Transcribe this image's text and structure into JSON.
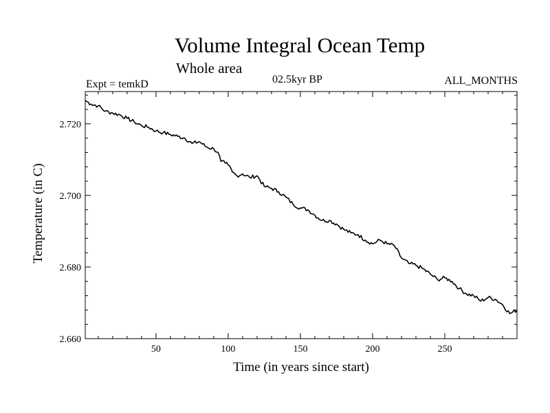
{
  "chart_data": {
    "type": "line",
    "title": "Volume Integral Ocean Temp",
    "subtitle": "Whole area",
    "left_annotation": "Expt = temkD",
    "center_annotation": "02.5kyr BP",
    "right_annotation": "ALL_MONTHS",
    "xlabel": "Time (in years since start)",
    "ylabel": "Temperature (in C)",
    "xlim": [
      1,
      300
    ],
    "ylim": [
      2.66,
      2.729
    ],
    "xticks": [
      50,
      100,
      150,
      200,
      250
    ],
    "yticks": [
      2.66,
      2.68,
      2.7,
      2.72
    ],
    "xtick_labels": [
      "50",
      "100",
      "150",
      "200",
      "250"
    ],
    "ytick_labels": [
      "2.660",
      "2.680",
      "2.700",
      "2.720"
    ],
    "grid": false,
    "series": [
      {
        "name": "Volume Integral Ocean Temp",
        "color": "#000000",
        "x": [
          1,
          5,
          10,
          15,
          20,
          25,
          30,
          35,
          40,
          45,
          50,
          55,
          60,
          65,
          70,
          75,
          80,
          85,
          90,
          93,
          95,
          98,
          100,
          103,
          106,
          110,
          115,
          120,
          125,
          130,
          135,
          140,
          145,
          150,
          155,
          160,
          165,
          170,
          175,
          180,
          185,
          190,
          195,
          200,
          205,
          210,
          215,
          220,
          225,
          230,
          235,
          240,
          245,
          250,
          255,
          260,
          265,
          270,
          275,
          280,
          285,
          290,
          295,
          300
        ],
        "values": [
          2.7265,
          2.7255,
          2.725,
          2.7235,
          2.723,
          2.7225,
          2.7215,
          2.7205,
          2.7195,
          2.719,
          2.718,
          2.7175,
          2.717,
          2.7165,
          2.716,
          2.7145,
          2.715,
          2.7135,
          2.713,
          2.712,
          2.7095,
          2.709,
          2.7085,
          2.7065,
          2.7055,
          2.706,
          2.705,
          2.7055,
          2.7025,
          2.702,
          2.701,
          2.6995,
          2.6975,
          2.6965,
          2.696,
          2.6945,
          2.693,
          2.693,
          2.692,
          2.6905,
          2.6895,
          2.689,
          2.6875,
          2.6865,
          2.6875,
          2.6865,
          2.686,
          2.6825,
          2.681,
          2.6805,
          2.6795,
          2.678,
          2.6765,
          2.677,
          2.676,
          2.674,
          2.6725,
          2.672,
          2.6705,
          2.6715,
          2.671,
          2.6695,
          2.667,
          2.668
        ]
      }
    ]
  }
}
